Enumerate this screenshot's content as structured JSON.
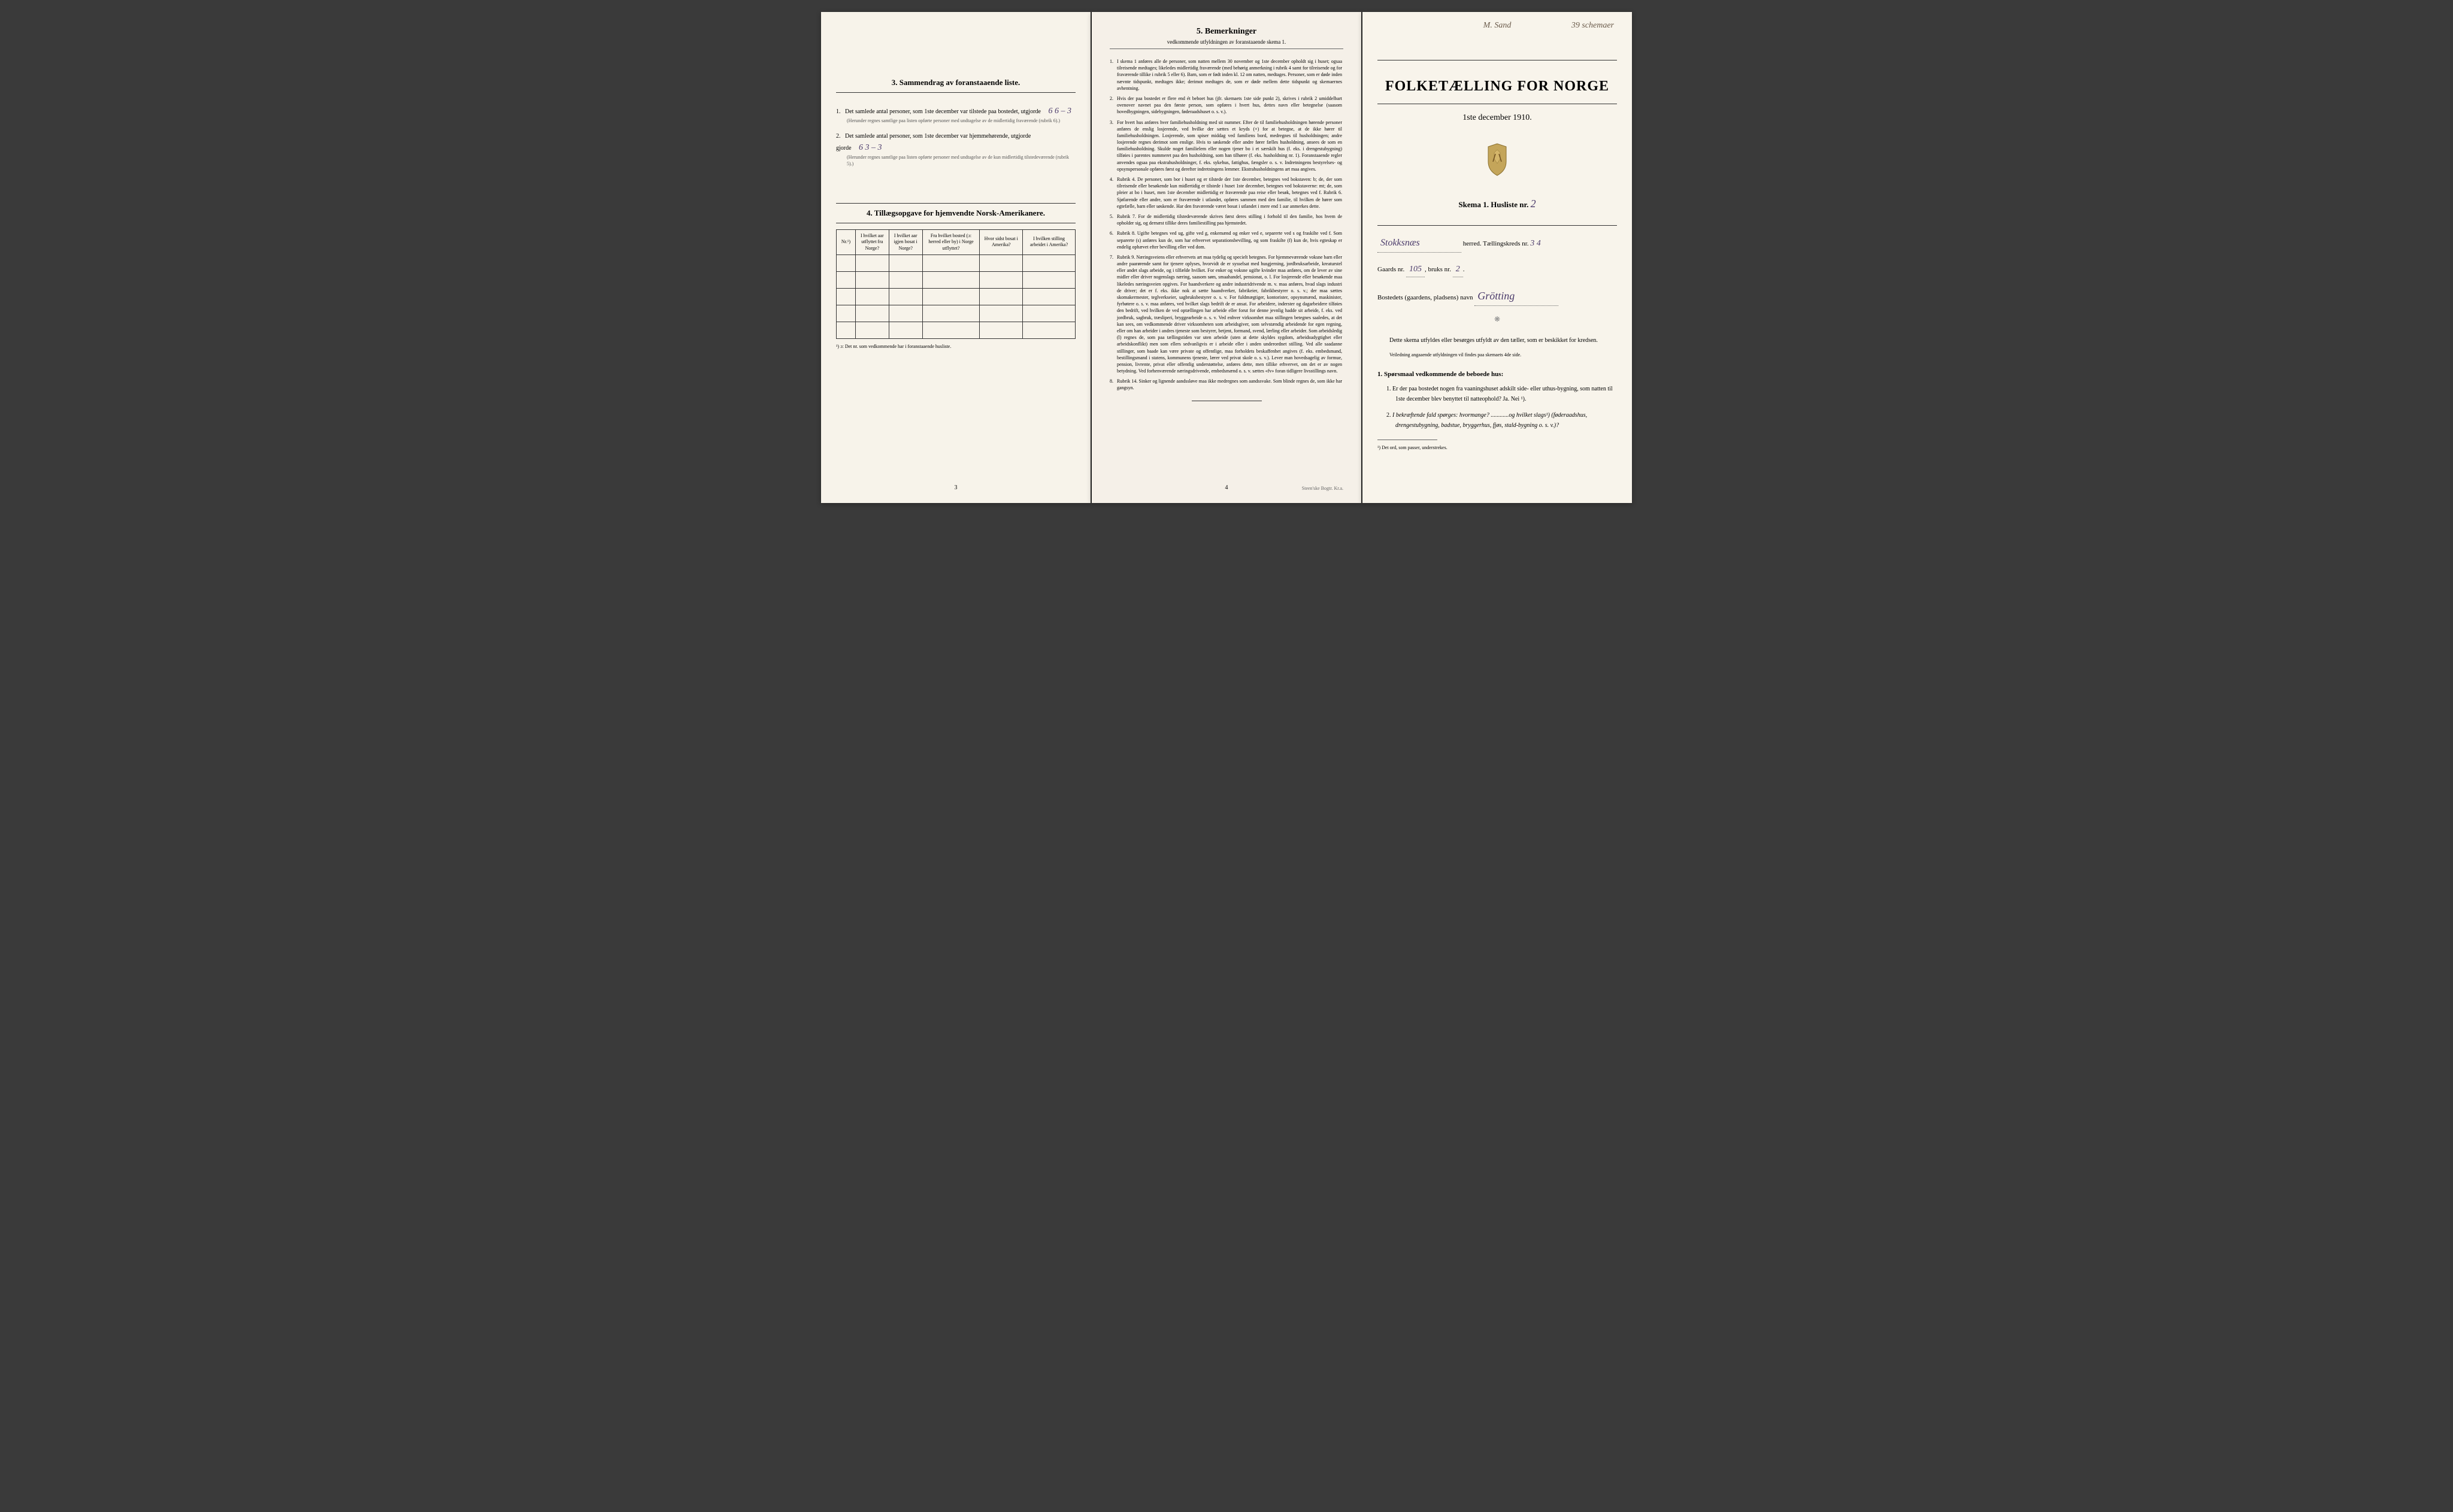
{
  "left_page": {
    "section3_title": "3.   Sammendrag av foranstaaende liste.",
    "item1_text": "Det samlede antal personer, som 1ste december var tilstede paa bostedet, utgjorde",
    "item1_values": "6     6 – 3",
    "item1_note": "(Herunder regnes samtlige paa listen opførte personer med undtagelse av de midlertidig fraværende (rubrik 6).)",
    "item2_text": "Det samlede antal personer, som 1ste december var hjemmehørende, utgjorde",
    "item2_values": "6     3 – 3",
    "item2_note": "(Herunder regnes samtlige paa listen opførte personer med undtagelse av de kun midlertidig tilstedeværende (rubrik 5).)",
    "section4_title": "4.   Tillægsopgave for hjemvendte Norsk-Amerikanere.",
    "table_headers": [
      "Nr.¹)",
      "I hvilket aar utflyttet fra Norge?",
      "I hvilket aar igjen bosat i Norge?",
      "Fra hvilket bosted (ɔ: herred eller by) i Norge utflyttet?",
      "Hvor sidst bosat i Amerika?",
      "I hvilken stilling arbeidet i Amerika?"
    ],
    "table_rows": 5,
    "footnote": "¹) ɔ: Det nr. som vedkommende har i foranstaaende husliste.",
    "page_num": "3"
  },
  "center_page": {
    "title": "5.   Bemerkninger",
    "subtitle": "vedkommende utfyldningen av foranstaaende skema 1.",
    "remarks": [
      "I skema 1 anføres alle de personer, som natten mellem 30 november og 1ste december opholdt sig i huset; ogsaa tilreisende medtages; likeledes midlertidig fraværende (med behørig anmerkning i rubrik 4 samt for tilreisende og for fraværende tillike i rubrik 5 eller 6). Barn, som er født inden kl. 12 om natten, medtages. Personer, som er døde inden nævnte tidspunkt, medtages ikke; derimot medtages de, som er døde mellem dette tidspunkt og skemaernes avhentning.",
      "Hvis der paa bostedet er flere end ét beboet hus (jfr. skemaets 1ste side punkt 2), skrives i rubrik 2 umiddelbart ovenover navnet paa den første person, som opføres i hvert hus, dettes navn eller betegnelse (saasom hovedbygningen, sidebygningen, føderaadshuset o. s. v.).",
      "For hvert hus anføres hver familiehusholdning med sit nummer. Efter de til familiehusholdningen hørende personer anføres de enslig losjerende, ved hvilke der sættes et kryds (×) for at betegne, at de ikke hører til familiehusholdningen. Losjerende, som spiser middag ved familiens bord, medregnes til husholdningen; andre losjerende regnes derimot som enslige. Hvis to søskende eller andre fører fælles husholdning, ansees de som en familiehusholdning. Skulde noget familielem eller nogen tjener bo i et særskilt hus (f. eks. i drengestubygning) tilføies i parentes nummeret paa den husholdning, som han tilhører (f. eks. husholdning nr. 1).\n   Foranstaaende regler anvendes ogsaa paa ekstrahusholdninger, f. eks. sykehus, fattighus, fængsler o. s. v. Indretningens bestyrelses- og opsynspersonale opføres først og derefter indretningens lemmer. Ekstrahusholdningens art maa angives.",
      "Rubrik 4. De personer, som bor i huset og er tilstede der 1ste december, betegnes ved bokstaven: b; de, der som tilreisende eller besøkende kun midlertidig er tilstede i huset 1ste december, betegnes ved bokstaverne: mt; de, som pleier at bo i huset, men 1ste december midlertidig er fraværende paa reise eller besøk, betegnes ved f.\n   Rubrik 6. Sjøfarende eller andre, som er fraværende i utlandet, opføres sammen med den familie, til hvilken de hører som egtefælle, barn eller søskende.\n   Har den fraværende været bosat i utlandet i mere end 1 aar anmerkes dette.",
      "Rubrik 7. For de midlertidig tilstedeværende skrives først deres stilling i forhold til den familie, hos hvem de opholder sig, og dernæst tillike deres familiestilling paa hjemstedet.",
      "Rubrik 8. Ugifte betegnes ved ug, gifte ved g, enkemænd og enker ved e, separerte ved s og fraskilte ved f. Som separerte (s) anføres kun de, som har erhvervet separationsbevilling, og som fraskilte (f) kun de, hvis egteskap er endelig ophævet efter bevilling eller ved dom.",
      "Rubrik 9. Næringsveiens eller erhvervets art maa tydelig og specielt betegnes.\n   For hjemmeværende voksne barn eller andre paarørende samt for tjenere oplyses, hvorvidt de er sysselsat med husgjerning, jordbruksarbeide, kreaturstel eller andet slags arbeide, og i tilfælde hvilket. For enker og voksne ugifte kvinder maa anføres, om de lever av sine midler eller driver nogenslags næring, saasom søm, smaahandel, pensionat, o. l.\n   For losjerende eller besøkende maa likeledes næringsveien opgives.\n   For haandverkere og andre industridrivende m. v. maa anføres, hvad slags industri de driver; det er f. eks. ikke nok at sætte haandverker, fabrikeier, fabrikbestyrer o. s. v.; der maa sættes skomakermester, teglverkseier, sagbruksbestyrer o. s. v.\n   For fuldmægtiger, kontorister, opsynsmænd, maskinister, fyrbøtere o. s. v. maa anføres, ved hvilket slags bedrift de er ansat.\n   For arbeidere, inderster og dagarbeidere tilføies den bedrift, ved hvilken de ved optællingen har arbeide eller forut for denne jevnlig hadde sit arbeide, f. eks. ved jordbruk, sagbruk, træsliperi, bryggearbeide o. s. v.\n   Ved enhver virksomhet maa stillingen betegnes saaledes, at det kan sees, om vedkommende driver virksomheten som arbeidsgiver, som selvstændig arbeidende for egen regning, eller om han arbeider i andres tjeneste som bestyrer, betjent, formand, svend, lærling eller arbeider.\n   Som arbeidsledig (l) regnes de, som paa tællingstiden var uten arbeide (uten at dette skyldes sygdom, arbeidsudygtighet eller arbeidskonflikt) men som ellers sedvanligvis er i arbeide eller i anden underordnet stilling.\n   Ved alle saadanne stillinger, som baade kan være private og offentlige, maa forholdets beskaffenhet angives (f. eks. embedsmand, bestillingsmand i statens, kommunens tjeneste, lærer ved privat skole o. s. v.).\n   Lever man hovedsagelig av formue, pension, livrente, privat eller offentlig understøttelse, anføres dette, men tillike erhvervet, om det er av nogen betydning.\n   Ved forhenværende næringsdrivende, embedsmænd o. s. v. sættes «fv» foran tidligere livsstillings navn.",
      "Rubrik 14. Sinker og lignende aandssløve maa ikke medregnes som aandssvake.\n   Som blinde regnes de, som ikke har gangsyn."
    ],
    "page_num": "4",
    "printer": "Steen'ske Bogtr.  Kr.a."
  },
  "right_page": {
    "top_hw_left": "M. Sand",
    "top_hw_right": "39 schemaer",
    "main_title": "FOLKETÆLLING FOR NORGE",
    "date_line": "1ste december 1910.",
    "skema_label": "Skema 1.   Husliste nr.",
    "husliste_nr": "2",
    "herred_value": "Stokksnæs",
    "herred_label": "herred.  Tællingskreds nr.",
    "kreds_nr": "3 4",
    "gaards_label": "Gaards nr.",
    "gaards_nr": "105",
    "bruks_label": "bruks nr.",
    "bruks_nr": "2",
    "bosted_label": "Bostedets (gaardens, pladsens) navn",
    "bosted_value": "Grötting",
    "instruction_main": "Dette skema utfyldes eller besørges utfyldt av den tæller, som er beskikket for kredsen.",
    "instruction_sub": "Veiledning angaaende utfyldningen vil findes paa skemaets 4de side.",
    "q_header": "1. Spørsmaal vedkommende de beboede hus:",
    "q1": "Er der paa bostedet nogen fra vaaningshuset adskilt side- eller uthus-bygning, som natten til 1ste december blev benyttet til natteophold?   Ja.   Nei ¹).",
    "q2": "I bekræftende fald spørges: hvormange? ............og hvilket slags¹) (føderaadshus, drengestubygning, badstue, bryggerhus, fjøs, stald-bygning o. s. v.)?",
    "footnote": "¹) Det ord, som passer, understrekes."
  }
}
